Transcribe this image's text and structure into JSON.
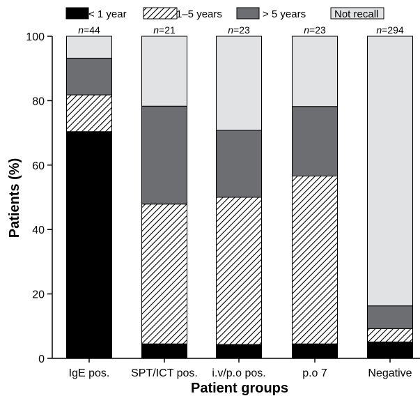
{
  "chart_data": {
    "type": "bar",
    "stacked": true,
    "xlabel": "Patient groups",
    "ylabel": "Patients (%)",
    "ylim": [
      0,
      100
    ],
    "yticks": [
      0,
      20,
      40,
      60,
      80,
      100
    ],
    "legend_position": "top",
    "categories": [
      "IgE pos.",
      "SPT/ICT pos.",
      "i.v/p.o pos.",
      "p.o 7",
      "Negative"
    ],
    "n_prefix": "n",
    "n_values": [
      "=44",
      "=21",
      "=23",
      "=23",
      "=294"
    ],
    "series": [
      {
        "name": "< 1 year",
        "color": "#000000",
        "pattern": "solid",
        "values": [
          70.4,
          4.5,
          4.3,
          4.5,
          5.1
        ]
      },
      {
        "name": "1–5 years",
        "color": "#aaaaaa",
        "pattern": "hatch",
        "values": [
          11.4,
          43.4,
          45.7,
          52.1,
          4.1
        ]
      },
      {
        "name": "> 5 years",
        "color": "#6d6e71",
        "pattern": "solid",
        "values": [
          11.4,
          30.4,
          20.8,
          21.6,
          7.1
        ]
      },
      {
        "name": "Not recall",
        "color": "#e1e2e3",
        "pattern": "solid",
        "values": [
          6.8,
          21.7,
          29.2,
          21.8,
          83.7
        ]
      }
    ]
  }
}
